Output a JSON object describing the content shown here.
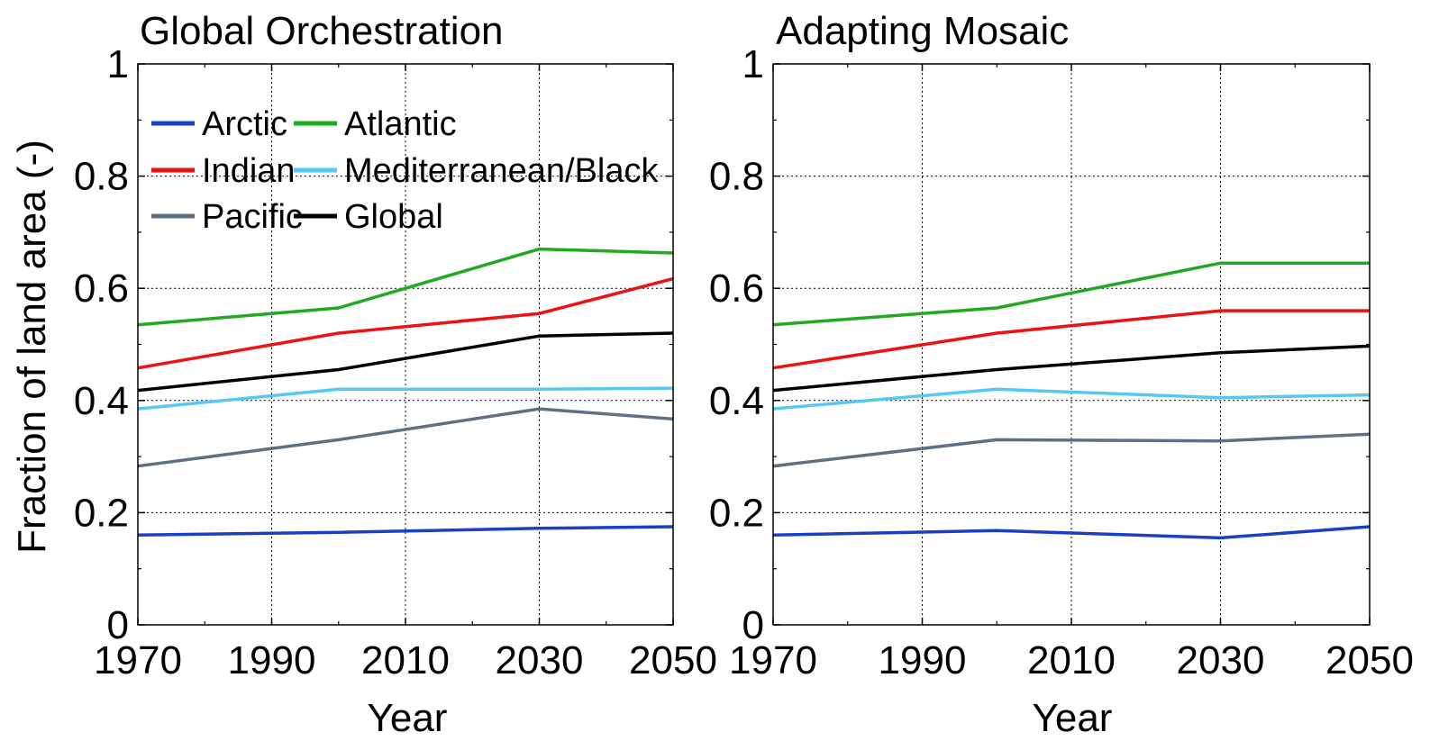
{
  "chart_data": {
    "ylabel": "Fraction of land area (-)",
    "xlabel": "Year",
    "legend": {
      "placement": "top-left inside first panel",
      "entries": [
        {
          "label": "Arctic",
          "color": "#1a3fc4"
        },
        {
          "label": "Atlantic",
          "color": "#1faa1f"
        },
        {
          "label": "Indian",
          "color": "#ee1111"
        },
        {
          "label": "Mediterranean/Black",
          "color": "#55c8f5"
        },
        {
          "label": "Pacific",
          "color": "#5f6f86"
        },
        {
          "label": "Global",
          "color": "#000000"
        }
      ]
    },
    "panels": [
      {
        "type": "line",
        "title": "Global Orchestration",
        "xlabel": "Year",
        "ylabel": "Fraction of land area (-)",
        "xlim": [
          1970,
          2050
        ],
        "ylim": [
          0,
          1
        ],
        "xticks": [
          "1970",
          "1990",
          "2010",
          "2030",
          "2050"
        ],
        "yticks": [
          "0",
          "0.2",
          "0.4",
          "0.6",
          "0.8",
          "1"
        ],
        "grid": true,
        "x": [
          1970,
          2000,
          2030,
          2050
        ],
        "series": [
          {
            "name": "Arctic",
            "color": "#1a3fc4",
            "values": [
              0.16,
              0.165,
              0.172,
              0.175
            ]
          },
          {
            "name": "Atlantic",
            "color": "#1faa1f",
            "values": [
              0.535,
              0.565,
              0.67,
              0.663
            ]
          },
          {
            "name": "Indian",
            "color": "#ee1111",
            "values": [
              0.458,
              0.52,
              0.555,
              0.617
            ]
          },
          {
            "name": "Mediterranean/Black",
            "color": "#55c8f5",
            "values": [
              0.385,
              0.42,
              0.42,
              0.422
            ]
          },
          {
            "name": "Pacific",
            "color": "#5f6f86",
            "values": [
              0.283,
              0.33,
              0.385,
              0.367
            ]
          },
          {
            "name": "Global",
            "color": "#000000",
            "values": [
              0.418,
              0.455,
              0.515,
              0.52
            ]
          }
        ]
      },
      {
        "type": "line",
        "title": "Adapting Mosaic",
        "xlabel": "Year",
        "xlim": [
          1970,
          2050
        ],
        "ylim": [
          0,
          1
        ],
        "xticks": [
          "1970",
          "1990",
          "2010",
          "2030",
          "2050"
        ],
        "yticks": [
          "0",
          "0.2",
          "0.4",
          "0.6",
          "0.8",
          "1"
        ],
        "grid": true,
        "x": [
          1970,
          2000,
          2030,
          2050
        ],
        "series": [
          {
            "name": "Arctic",
            "color": "#1a3fc4",
            "values": [
              0.16,
              0.168,
              0.155,
              0.175
            ]
          },
          {
            "name": "Atlantic",
            "color": "#1faa1f",
            "values": [
              0.535,
              0.565,
              0.645,
              0.645
            ]
          },
          {
            "name": "Indian",
            "color": "#ee1111",
            "values": [
              0.458,
              0.52,
              0.56,
              0.56
            ]
          },
          {
            "name": "Mediterranean/Black",
            "color": "#55c8f5",
            "values": [
              0.385,
              0.42,
              0.405,
              0.41
            ]
          },
          {
            "name": "Pacific",
            "color": "#5f6f86",
            "values": [
              0.283,
              0.33,
              0.328,
              0.34
            ]
          },
          {
            "name": "Global",
            "color": "#000000",
            "values": [
              0.418,
              0.455,
              0.485,
              0.497
            ]
          }
        ]
      }
    ]
  }
}
